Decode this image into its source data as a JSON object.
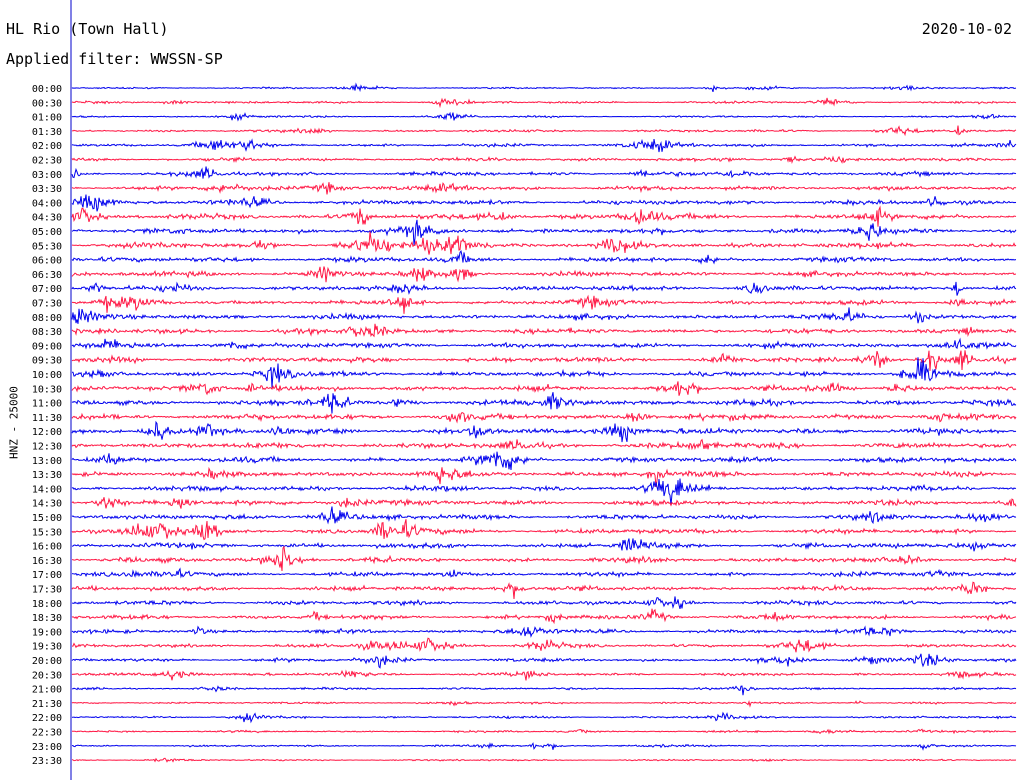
{
  "header": {
    "station": "HL Rio (Town Hall)",
    "filter": "Applied filter: WWSSN-SP",
    "date": "2020-10-02"
  },
  "axis": {
    "ylabel": "HNZ - 25000"
  },
  "colors": {
    "even_trace": "#0000ee",
    "odd_trace": "#ff1744",
    "axis": "#0000cc",
    "label": "#000000"
  },
  "chart_data": {
    "type": "line",
    "title": "HL Rio (Town Hall)",
    "subtitle": "Applied filter: WWSSN-SP",
    "date": "2020-10-02",
    "ylabel": "HNZ - 25000",
    "xlabel": "",
    "categories": [
      "00:00",
      "00:30",
      "01:00",
      "01:30",
      "02:00",
      "02:30",
      "03:00",
      "03:30",
      "04:00",
      "04:30",
      "05:00",
      "05:30",
      "06:00",
      "06:30",
      "07:00",
      "07:30",
      "08:00",
      "08:30",
      "09:00",
      "09:30",
      "10:00",
      "10:30",
      "11:00",
      "11:30",
      "12:00",
      "12:30",
      "13:00",
      "13:30",
      "14:00",
      "14:30",
      "15:00",
      "15:30",
      "16:00",
      "16:30",
      "17:00",
      "17:30",
      "18:00",
      "18:30",
      "19:00",
      "19:30",
      "20:00",
      "20:30",
      "21:00",
      "21:30",
      "22:00",
      "22:30",
      "23:00",
      "23:30"
    ],
    "series": [
      {
        "color": "#0000ee",
        "description": "traces starting on the hour"
      },
      {
        "color": "#ff1744",
        "description": "traces starting on the half hour"
      }
    ],
    "relative_amplitude": [
      0.25,
      0.35,
      0.3,
      0.4,
      0.5,
      0.55,
      0.6,
      0.7,
      0.75,
      0.85,
      0.85,
      0.85,
      0.8,
      0.8,
      0.75,
      0.75,
      0.8,
      0.8,
      0.8,
      0.85,
      0.85,
      0.8,
      0.85,
      0.9,
      0.9,
      0.9,
      0.85,
      0.85,
      0.8,
      0.8,
      0.8,
      0.8,
      0.8,
      0.75,
      0.7,
      0.7,
      0.7,
      0.65,
      0.6,
      0.6,
      0.55,
      0.45,
      0.35,
      0.3,
      0.35,
      0.3,
      0.3,
      0.25
    ],
    "grid": false,
    "legend": "none"
  }
}
